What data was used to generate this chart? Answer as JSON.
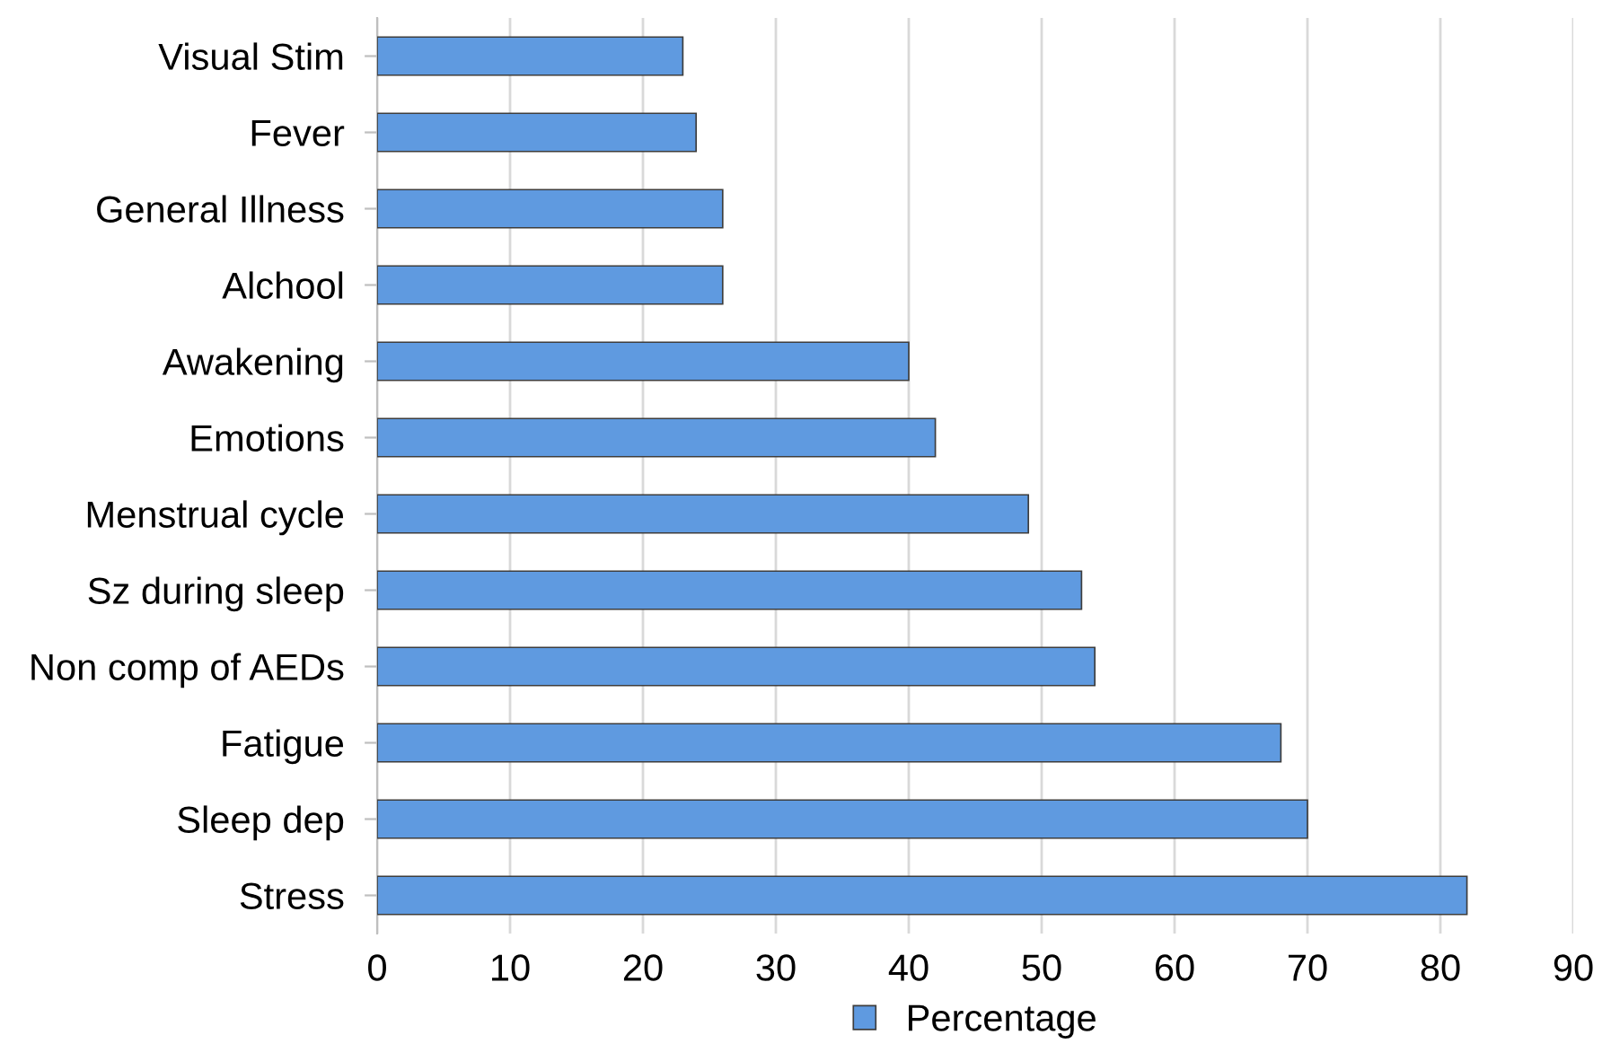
{
  "chart_data": {
    "type": "bar",
    "orientation": "horizontal",
    "categories": [
      "Visual Stim",
      "Fever",
      "General Illness",
      "Alchool",
      "Awakening",
      "Emotions",
      "Menstrual cycle",
      "Sz during sleep",
      "Non comp of AEDs",
      "Fatigue",
      "Sleep dep",
      "Stress"
    ],
    "series": [
      {
        "name": "Percentage",
        "color": "#5f9ae0",
        "values": [
          23,
          24,
          26,
          26,
          40,
          42,
          49,
          53,
          54,
          68,
          70,
          82
        ]
      }
    ],
    "xlim": [
      0,
      90
    ],
    "xticks": [
      0,
      10,
      20,
      30,
      40,
      50,
      60,
      70,
      80,
      90
    ],
    "grid": "x",
    "legend": "bottom"
  }
}
